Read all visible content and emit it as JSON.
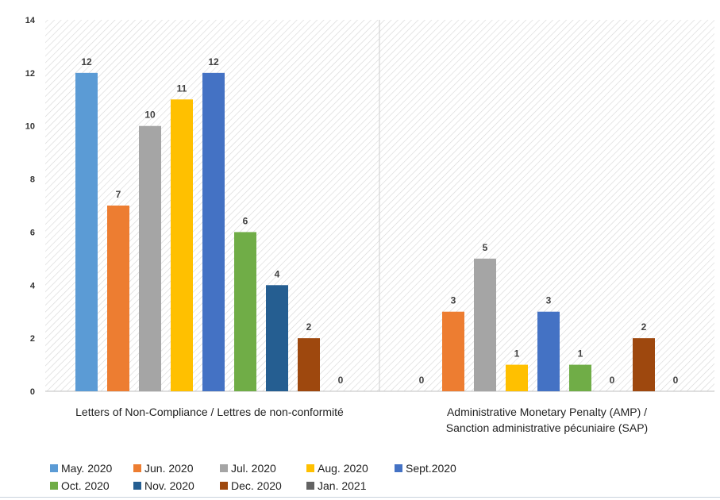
{
  "chart_data": {
    "type": "bar",
    "categories": [
      "Letters of Non-Compliance / Lettres de non-conformité",
      "Administrative Monetary Penalty (AMP) / Sanction administrative pécuniaire (SAP)"
    ],
    "ylim": [
      0,
      14
    ],
    "yticks": [
      0,
      2,
      4,
      6,
      8,
      10,
      12,
      14
    ],
    "grid": "hatched plot area",
    "legend_position": "bottom",
    "series": [
      {
        "name": "May. 2020",
        "color": "#5B9BD5",
        "values": [
          12,
          0
        ]
      },
      {
        "name": "Jun. 2020",
        "color": "#ED7D31",
        "values": [
          7,
          3
        ]
      },
      {
        "name": "Jul. 2020",
        "color": "#A5A5A5",
        "values": [
          10,
          5
        ]
      },
      {
        "name": "Aug. 2020",
        "color": "#FFC000",
        "values": [
          11,
          1
        ]
      },
      {
        "name": "Sept.2020",
        "color": "#4472C4",
        "values": [
          12,
          3
        ]
      },
      {
        "name": "Oct. 2020",
        "color": "#70AD47",
        "values": [
          6,
          1
        ]
      },
      {
        "name": "Nov. 2020",
        "color": "#255E91",
        "values": [
          4,
          0
        ]
      },
      {
        "name": "Dec. 2020",
        "color": "#9E480E",
        "values": [
          2,
          2
        ]
      },
      {
        "name": "Jan. 2021",
        "color": "#636363",
        "values": [
          0,
          0
        ]
      }
    ]
  }
}
